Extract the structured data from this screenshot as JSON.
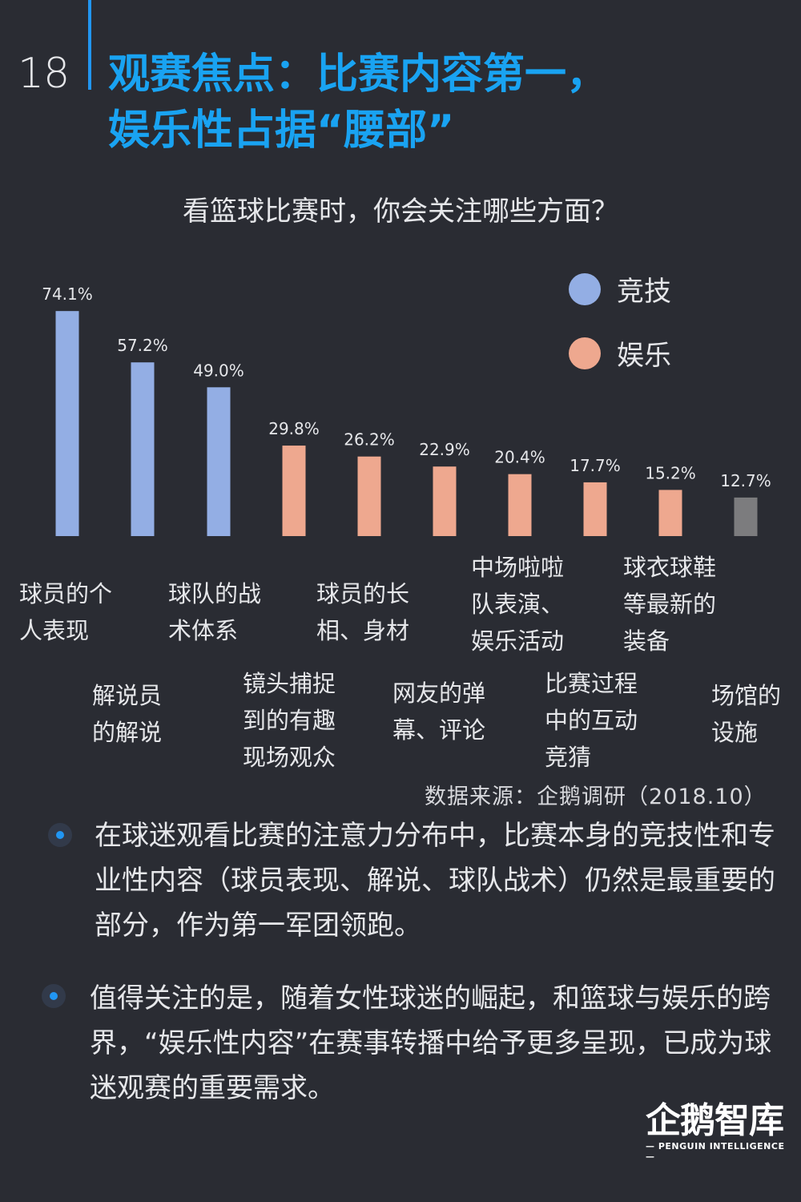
{
  "page_number": "18",
  "title": {
    "line1": "观赛焦点：比赛内容第一，",
    "line2": "娱乐性占据“腰部”"
  },
  "colors": {
    "accent": "#1ea3f1",
    "competitive": "#93aee4",
    "entertainment": "#eea88f",
    "other": "#7c7c7e"
  },
  "chart_data": {
    "type": "bar",
    "title": "看篮球比赛时，你会关注哪些方面？",
    "categories": [
      "球员的个人表现",
      "解说员的解说",
      "球队的战术体系",
      "镜头捕捉到的有趣现场观众",
      "球员的长相、身材",
      "网友的弹幕、评论",
      "中场啦啦队表演、娱乐活动",
      "比赛过程中的互动竞猜",
      "球衣球鞋等最新的装备",
      "场馆的设施"
    ],
    "category_lines": [
      "球员的个\n人表现",
      "解说员\n的解说",
      "球队的战\n术体系",
      "镜头捕捉\n到的有趣\n现场观众",
      "球员的长\n相、身材",
      "网友的弹\n幕、评论",
      "中场啦啦\n队表演、\n娱乐活动",
      "比赛过程\n中的互动\n竞猜",
      "球衣球鞋\n等最新的\n装备",
      "场馆的\n设施"
    ],
    "values": [
      74.1,
      57.2,
      49.0,
      29.8,
      26.2,
      22.9,
      20.4,
      17.7,
      15.2,
      12.7
    ],
    "value_labels": [
      "74.1%",
      "57.2%",
      "49.0%",
      "29.8%",
      "26.2%",
      "22.9%",
      "20.4%",
      "17.7%",
      "15.2%",
      "12.7%"
    ],
    "groups": [
      "竞技",
      "竞技",
      "竞技",
      "娱乐",
      "娱乐",
      "娱乐",
      "娱乐",
      "娱乐",
      "娱乐",
      "other"
    ],
    "legend": [
      "竞技",
      "娱乐"
    ],
    "legend_position": "top-right",
    "ylim": [
      0,
      80
    ],
    "grid": false
  },
  "source": "数据来源：企鹅调研（2018.10）",
  "bullets": [
    "在球迷观看比赛的注意力分布中，比赛本身的竞技性和专业性内容（球员表现、解说、球队战术）仍然是最重要的部分，作为第一军团领跑。",
    "值得关注的是，随着女性球迷的崛起，和篮球与娱乐的跨界，“娱乐性内容”在赛事转播中给予更多呈现，已成为球迷观赛的重要需求。"
  ],
  "logo": {
    "main": "企鹅智库",
    "sub": "— PENGUIN INTELLIGENCE —"
  }
}
